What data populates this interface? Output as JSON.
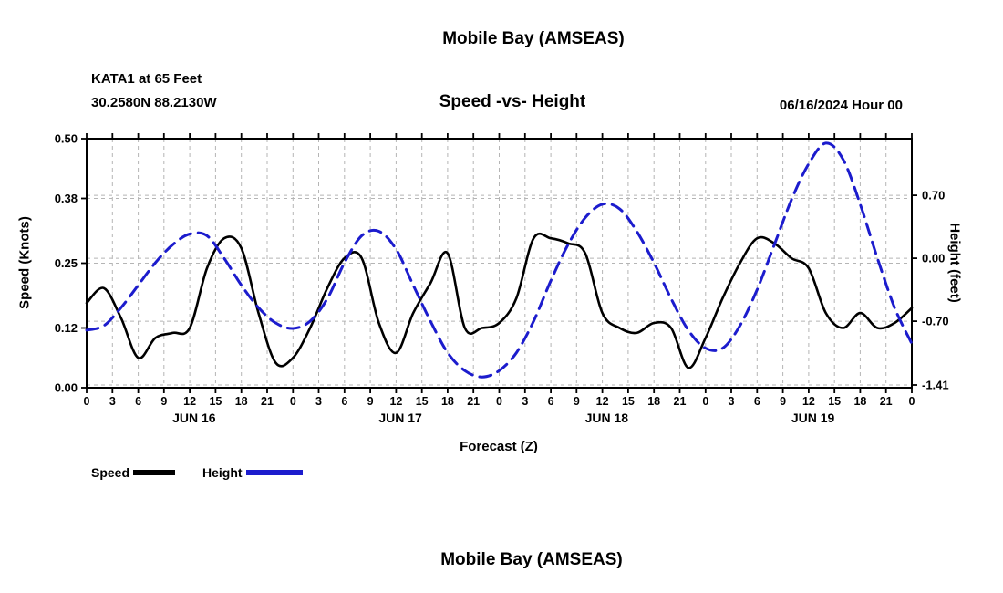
{
  "page": {
    "title_top": "Mobile Bay (AMSEAS)",
    "title_bottom": "Mobile Bay (AMSEAS)"
  },
  "header": {
    "station": "KATA1 at 65 Feet",
    "coordinates": "30.2580N 88.2130W",
    "subtitle": "Speed -vs- Height",
    "datetime": "06/16/2024 Hour 00"
  },
  "legend": {
    "speed_label": "Speed",
    "height_label": "Height"
  },
  "colors": {
    "speed": "#000000",
    "height": "#1c1ccd",
    "grid": "#b5b5b5"
  },
  "chart_data": {
    "type": "line",
    "title": "Mobile Bay (AMSEAS)",
    "subtitle": "Speed -vs- Height",
    "xlabel": "Forecast (Z)",
    "x_hours": [
      0,
      2,
      4,
      6,
      8,
      10,
      12,
      14,
      16,
      18,
      20,
      22,
      24,
      26,
      28,
      30,
      32,
      34,
      36,
      38,
      40,
      42,
      44,
      46,
      48,
      50,
      52,
      54,
      56,
      58,
      60,
      62,
      64,
      66,
      68,
      70,
      72,
      74,
      76,
      78,
      80,
      82,
      84,
      86,
      88,
      90,
      92,
      94,
      96
    ],
    "x_ticks": [
      0,
      3,
      6,
      9,
      12,
      15,
      18,
      21,
      24,
      27,
      30,
      33,
      36,
      39,
      42,
      45,
      48,
      51,
      54,
      57,
      60,
      63,
      66,
      69,
      72,
      75,
      78,
      81,
      84,
      87,
      90,
      93,
      96
    ],
    "x_tick_labels": [
      "0",
      "3",
      "6",
      "9",
      "12",
      "15",
      "18",
      "21",
      "0",
      "3",
      "6",
      "9",
      "12",
      "15",
      "18",
      "21",
      "0",
      "3",
      "6",
      "9",
      "12",
      "15",
      "18",
      "21",
      "0",
      "3",
      "6",
      "9",
      "12",
      "15",
      "18",
      "21",
      "0"
    ],
    "day_labels": [
      {
        "label": "JUN 16",
        "center_hour": 12.5
      },
      {
        "label": "JUN 17",
        "center_hour": 36.5
      },
      {
        "label": "JUN 18",
        "center_hour": 60.5
      },
      {
        "label": "JUN 19",
        "center_hour": 84.5
      }
    ],
    "axes": {
      "left": {
        "label": "Speed (Knots)",
        "min": 0.0,
        "max": 0.5,
        "ticks": [
          0.0,
          0.12,
          0.25,
          0.38,
          0.5
        ],
        "tick_labels": [
          "0.00",
          "0.12",
          "0.25",
          "0.38",
          "0.50"
        ]
      },
      "right": {
        "label": "Height (feet)",
        "min": -1.44,
        "max": 1.33,
        "ticks": [
          -1.41,
          -0.7,
          0.0,
          0.7
        ],
        "tick_labels": [
          "-1.41",
          "-0.70",
          "0.00",
          "0.70"
        ]
      }
    },
    "series": [
      {
        "name": "Speed",
        "axis": "left",
        "color": "#000000",
        "style": "solid",
        "values": [
          0.17,
          0.2,
          0.14,
          0.06,
          0.1,
          0.11,
          0.12,
          0.24,
          0.3,
          0.28,
          0.15,
          0.05,
          0.06,
          0.12,
          0.2,
          0.26,
          0.26,
          0.13,
          0.07,
          0.15,
          0.21,
          0.27,
          0.12,
          0.12,
          0.13,
          0.18,
          0.3,
          0.3,
          0.29,
          0.27,
          0.15,
          0.12,
          0.11,
          0.13,
          0.12,
          0.04,
          0.1,
          0.18,
          0.25,
          0.3,
          0.29,
          0.26,
          0.24,
          0.15,
          0.12,
          0.15,
          0.12,
          0.13,
          0.16
        ]
      },
      {
        "name": "Height",
        "axis": "right",
        "color": "#1c1ccd",
        "style": "dashed",
        "values": [
          -0.8,
          -0.75,
          -0.55,
          -0.3,
          -0.05,
          0.15,
          0.27,
          0.25,
          0.0,
          -0.3,
          -0.55,
          -0.72,
          -0.78,
          -0.7,
          -0.45,
          -0.05,
          0.25,
          0.3,
          0.1,
          -0.3,
          -0.7,
          -1.05,
          -1.25,
          -1.32,
          -1.25,
          -1.05,
          -0.7,
          -0.25,
          0.15,
          0.45,
          0.6,
          0.55,
          0.3,
          -0.05,
          -0.45,
          -0.8,
          -1.0,
          -1.0,
          -0.75,
          -0.35,
          0.15,
          0.65,
          1.05,
          1.28,
          1.1,
          0.6,
          0.0,
          -0.55,
          -0.95
        ]
      }
    ]
  }
}
